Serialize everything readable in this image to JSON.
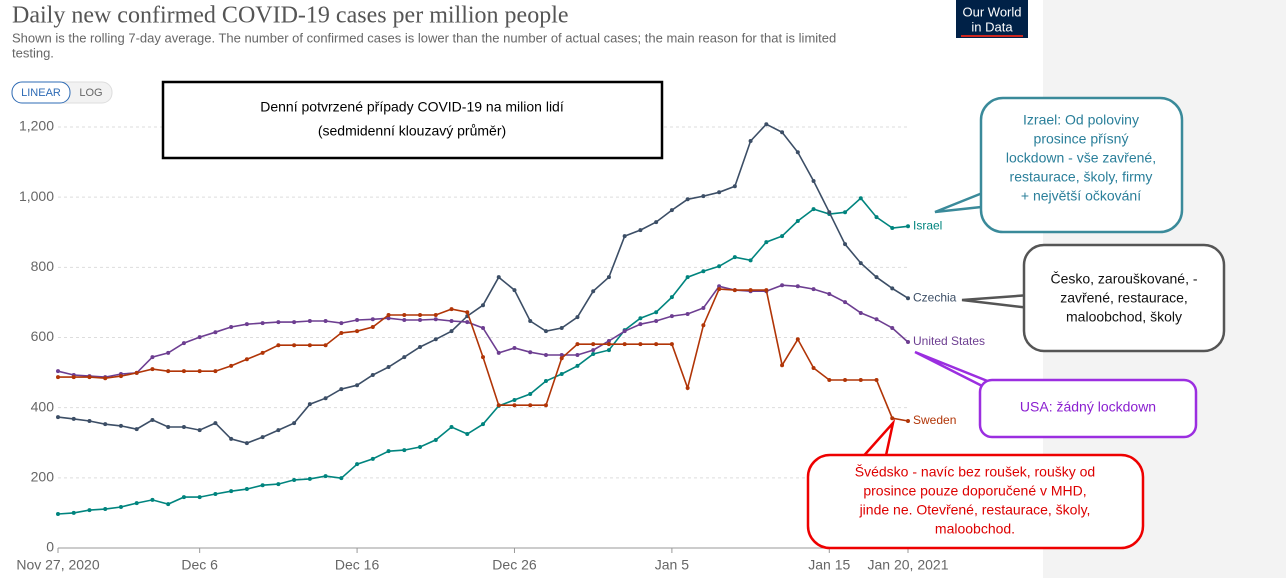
{
  "chart_data": {
    "type": "line",
    "title": "Daily new confirmed COVID-19 cases per million people",
    "subtitle": [
      "Shown is the rolling 7-day average. The number of confirmed cases is lower than the number of actual cases; the main reason for that is limited",
      "testing."
    ],
    "logo": [
      "Our World",
      "in Data"
    ],
    "scale_buttons": [
      "LINEAR",
      "LOG"
    ],
    "x": [
      "2020-11-27",
      "2020-11-28",
      "2020-11-29",
      "2020-11-30",
      "2020-12-01",
      "2020-12-02",
      "2020-12-03",
      "2020-12-04",
      "2020-12-05",
      "2020-12-06",
      "2020-12-07",
      "2020-12-08",
      "2020-12-09",
      "2020-12-10",
      "2020-12-11",
      "2020-12-12",
      "2020-12-13",
      "2020-12-14",
      "2020-12-15",
      "2020-12-16",
      "2020-12-17",
      "2020-12-18",
      "2020-12-19",
      "2020-12-20",
      "2020-12-21",
      "2020-12-22",
      "2020-12-23",
      "2020-12-24",
      "2020-12-25",
      "2020-12-26",
      "2020-12-27",
      "2020-12-28",
      "2020-12-29",
      "2020-12-30",
      "2020-12-31",
      "2021-01-01",
      "2021-01-02",
      "2021-01-03",
      "2021-01-04",
      "2021-01-05",
      "2021-01-06",
      "2021-01-07",
      "2021-01-08",
      "2021-01-09",
      "2021-01-10",
      "2021-01-11",
      "2021-01-12",
      "2021-01-13",
      "2021-01-14",
      "2021-01-15",
      "2021-01-16",
      "2021-01-17",
      "2021-01-18",
      "2021-01-19",
      "2021-01-20"
    ],
    "xlim": [
      "2020-11-27",
      "2021-01-20"
    ],
    "xticks": [
      {
        "value": "2020-11-27",
        "label": "Nov 27, 2020"
      },
      {
        "value": "2020-12-06",
        "label": "Dec 6"
      },
      {
        "value": "2020-12-16",
        "label": "Dec 16"
      },
      {
        "value": "2020-12-26",
        "label": "Dec 26"
      },
      {
        "value": "2021-01-05",
        "label": "Jan 5"
      },
      {
        "value": "2021-01-15",
        "label": "Jan 15"
      },
      {
        "value": "2021-01-20",
        "label": "Jan 20, 2021"
      }
    ],
    "ylim": [
      0,
      1200
    ],
    "yticks": [
      0,
      200,
      400,
      600,
      800,
      {
        "value": 1000,
        "label": "1,000"
      },
      {
        "value": 1200,
        "label": "1,200"
      }
    ],
    "grid": true,
    "series": [
      {
        "name": "Israel",
        "color": "#00847e",
        "values": [
          97,
          100,
          108,
          111,
          117,
          128,
          137,
          125,
          145,
          145,
          154,
          162,
          168,
          179,
          182,
          194,
          197,
          205,
          199,
          239,
          254,
          276,
          279,
          288,
          308,
          345,
          325,
          353,
          405,
          422,
          439,
          476,
          496,
          519,
          553,
          564,
          621,
          655,
          672,
          715,
          772,
          789,
          803,
          829,
          820,
          872,
          889,
          932,
          966,
          952,
          957,
          997,
          943,
          912,
          917
        ]
      },
      {
        "name": "Czechia",
        "color": "#3c4e66",
        "values": [
          373,
          368,
          362,
          353,
          348,
          339,
          365,
          345,
          345,
          336,
          356,
          311,
          299,
          316,
          336,
          356,
          410,
          427,
          453,
          464,
          493,
          516,
          544,
          573,
          595,
          618,
          661,
          692,
          772,
          735,
          647,
          618,
          627,
          658,
          732,
          772,
          889,
          906,
          929,
          963,
          994,
          1003,
          1014,
          1031,
          1160,
          1208,
          1185,
          1128,
          1046,
          957,
          866,
          812,
          772,
          740,
          712
        ]
      },
      {
        "name": "United States",
        "color": "#6d3e91",
        "values": [
          504,
          493,
          490,
          487,
          496,
          499,
          544,
          556,
          584,
          601,
          615,
          630,
          638,
          641,
          644,
          644,
          647,
          647,
          641,
          650,
          652,
          655,
          650,
          650,
          652,
          647,
          644,
          627,
          556,
          570,
          558,
          550,
          550,
          550,
          564,
          590,
          618,
          638,
          647,
          661,
          667,
          684,
          746,
          735,
          732,
          732,
          749,
          746,
          738,
          724,
          701,
          670,
          652,
          627,
          587
        ]
      },
      {
        "name": "Sweden",
        "color": "#b13507",
        "values": [
          487,
          487,
          487,
          484,
          490,
          499,
          510,
          504,
          504,
          504,
          504,
          519,
          538,
          556,
          578,
          578,
          578,
          578,
          613,
          618,
          630,
          664,
          664,
          664,
          664,
          681,
          672,
          544,
          407,
          407,
          407,
          407,
          541,
          581,
          581,
          581,
          581,
          581,
          581,
          581,
          456,
          635,
          738,
          735,
          735,
          735,
          521,
          595,
          513,
          479,
          479,
          479,
          479,
          370,
          362
        ]
      }
    ],
    "annotations": {
      "main": [
        "Denní potvrzené případy COVID-19 na milion lidí",
        "(sedmidenní klouzavý průměr)"
      ],
      "israel": [
        "Izrael: Od poloviny",
        "prosince přísný",
        "lockdown - vše zavřené,",
        "restaurace, školy, firmy",
        "+ největší očkování"
      ],
      "czechia": [
        "Česko, zarouškované, -",
        "zavřené, restaurace,",
        "maloobchod, školy"
      ],
      "usa": [
        "USA: žádný lockdown"
      ],
      "sweden": [
        "Švédsko - navíc bez roušek, roušky od",
        "prosince pouze doporučené v MHD,",
        "jinde ne. Otevřené, restaurace, školy,",
        "maloobchod."
      ]
    }
  }
}
